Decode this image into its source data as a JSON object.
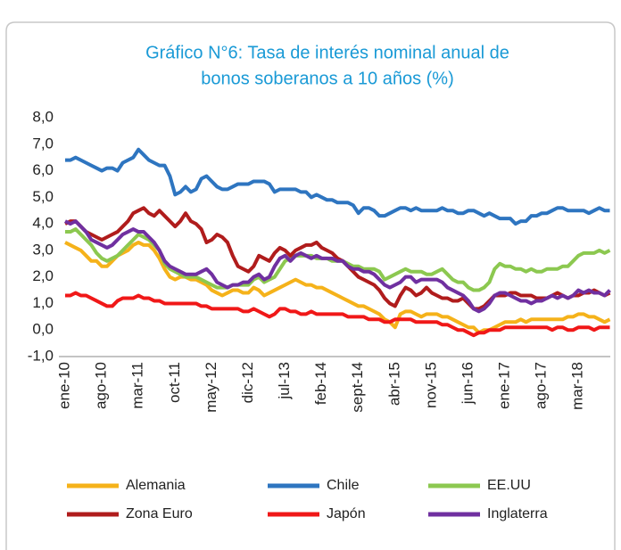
{
  "chart_data": {
    "type": "line",
    "title": [
      "Gráfico N°6: Tasa de interés nominal anual de",
      "bonos soberanos a 10 años (%)"
    ],
    "categories": [
      "ene-10",
      null,
      null,
      null,
      null,
      null,
      null,
      "ago-10",
      null,
      null,
      null,
      null,
      null,
      null,
      "mar-11",
      null,
      null,
      null,
      null,
      null,
      null,
      "oct-11",
      null,
      null,
      null,
      null,
      null,
      null,
      "may-12",
      null,
      null,
      null,
      null,
      null,
      null,
      "dic-12",
      null,
      null,
      null,
      null,
      null,
      null,
      "jul-13",
      null,
      null,
      null,
      null,
      null,
      null,
      "feb-14",
      null,
      null,
      null,
      null,
      null,
      null,
      "sept-14",
      null,
      null,
      null,
      null,
      null,
      null,
      "abr-15",
      null,
      null,
      null,
      null,
      null,
      null,
      "nov-15",
      null,
      null,
      null,
      null,
      null,
      null,
      "jun-16",
      null,
      null,
      null,
      null,
      null,
      null,
      "ene-17",
      null,
      null,
      null,
      null,
      null,
      null,
      "ago-17",
      null,
      null,
      null,
      null,
      null,
      null,
      "mar-18",
      null,
      null,
      null,
      null,
      null,
      null
    ],
    "ylim": [
      -1,
      8
    ],
    "yticks": [
      {
        "value": -1,
        "label": "-1,0"
      },
      {
        "value": 0,
        "label": "0,0"
      },
      {
        "value": 1,
        "label": "1,0"
      },
      {
        "value": 2,
        "label": "2,0"
      },
      {
        "value": 3,
        "label": "3,0"
      },
      {
        "value": 4,
        "label": "4,0"
      },
      {
        "value": 5,
        "label": "5,0"
      },
      {
        "value": 6,
        "label": "6,0"
      },
      {
        "value": 7,
        "label": "7,0"
      },
      {
        "value": 8,
        "label": "8,0"
      }
    ],
    "grid": false,
    "legend": "bottom",
    "series": [
      {
        "name": "Alemania",
        "color": "#f5b21a",
        "values": [
          3.3,
          3.2,
          3.1,
          3.0,
          2.8,
          2.6,
          2.6,
          2.4,
          2.4,
          2.6,
          2.8,
          2.9,
          3.0,
          3.2,
          3.3,
          3.2,
          3.2,
          3.0,
          2.7,
          2.3,
          2.0,
          1.9,
          2.0,
          2.0,
          1.9,
          1.9,
          1.8,
          1.7,
          1.5,
          1.4,
          1.3,
          1.4,
          1.5,
          1.5,
          1.4,
          1.4,
          1.6,
          1.5,
          1.3,
          1.4,
          1.5,
          1.6,
          1.7,
          1.8,
          1.9,
          1.8,
          1.7,
          1.7,
          1.6,
          1.6,
          1.5,
          1.4,
          1.3,
          1.2,
          1.1,
          1.0,
          0.9,
          0.9,
          0.8,
          0.7,
          0.6,
          0.4,
          0.3,
          0.1,
          0.6,
          0.7,
          0.7,
          0.6,
          0.5,
          0.6,
          0.6,
          0.6,
          0.5,
          0.5,
          0.4,
          0.3,
          0.2,
          0.1,
          0.1,
          -0.1,
          0.0,
          0.0,
          0.1,
          0.2,
          0.3,
          0.3,
          0.3,
          0.4,
          0.3,
          0.4,
          0.4,
          0.4,
          0.4,
          0.4,
          0.4,
          0.4,
          0.5,
          0.5,
          0.6,
          0.6,
          0.5,
          0.5,
          0.4,
          0.3,
          0.4
        ]
      },
      {
        "name": "Chile",
        "color": "#2e75c0",
        "values": [
          6.4,
          6.4,
          6.5,
          6.4,
          6.3,
          6.2,
          6.1,
          6.0,
          6.1,
          6.1,
          6.0,
          6.3,
          6.4,
          6.5,
          6.8,
          6.6,
          6.4,
          6.3,
          6.2,
          6.2,
          5.8,
          5.1,
          5.2,
          5.4,
          5.2,
          5.3,
          5.7,
          5.8,
          5.6,
          5.4,
          5.3,
          5.3,
          5.4,
          5.5,
          5.5,
          5.5,
          5.6,
          5.6,
          5.6,
          5.5,
          5.2,
          5.3,
          5.3,
          5.3,
          5.3,
          5.2,
          5.2,
          5.0,
          5.1,
          5.0,
          4.9,
          4.9,
          4.8,
          4.8,
          4.8,
          4.7,
          4.4,
          4.6,
          4.6,
          4.5,
          4.3,
          4.3,
          4.4,
          4.5,
          4.6,
          4.6,
          4.5,
          4.6,
          4.5,
          4.5,
          4.5,
          4.5,
          4.6,
          4.5,
          4.5,
          4.4,
          4.4,
          4.5,
          4.5,
          4.4,
          4.3,
          4.4,
          4.3,
          4.2,
          4.2,
          4.2,
          4.0,
          4.1,
          4.1,
          4.3,
          4.3,
          4.4,
          4.4,
          4.5,
          4.6,
          4.6,
          4.5,
          4.5,
          4.5,
          4.5,
          4.4,
          4.5,
          4.6,
          4.5,
          4.5
        ]
      },
      {
        "name": "EE.UU",
        "color": "#8cc850",
        "values": [
          3.7,
          3.7,
          3.8,
          3.6,
          3.4,
          3.2,
          2.9,
          2.7,
          2.6,
          2.7,
          2.8,
          3.0,
          3.2,
          3.4,
          3.6,
          3.5,
          3.4,
          3.2,
          3.0,
          2.5,
          2.3,
          2.2,
          2.1,
          2.0,
          2.0,
          2.0,
          1.9,
          1.8,
          1.7,
          1.6,
          1.6,
          1.6,
          1.7,
          1.7,
          1.7,
          1.7,
          1.9,
          2.0,
          1.8,
          1.9,
          2.0,
          2.3,
          2.6,
          2.7,
          2.8,
          2.8,
          2.8,
          2.8,
          2.7,
          2.7,
          2.7,
          2.6,
          2.6,
          2.6,
          2.5,
          2.4,
          2.4,
          2.3,
          2.3,
          2.3,
          2.2,
          1.9,
          2.0,
          2.1,
          2.2,
          2.3,
          2.2,
          2.2,
          2.2,
          2.1,
          2.1,
          2.2,
          2.3,
          2.1,
          1.9,
          1.8,
          1.8,
          1.6,
          1.5,
          1.5,
          1.6,
          1.8,
          2.3,
          2.5,
          2.4,
          2.4,
          2.3,
          2.3,
          2.2,
          2.3,
          2.2,
          2.2,
          2.3,
          2.3,
          2.3,
          2.4,
          2.4,
          2.6,
          2.8,
          2.9,
          2.9,
          2.9,
          3.0,
          2.9,
          3.0
        ]
      },
      {
        "name": "Zona Euro",
        "color": "#b01c1c",
        "values": [
          4.0,
          4.1,
          4.1,
          3.9,
          3.7,
          3.6,
          3.5,
          3.4,
          3.5,
          3.6,
          3.7,
          3.9,
          4.1,
          4.4,
          4.5,
          4.6,
          4.4,
          4.3,
          4.5,
          4.3,
          4.1,
          3.9,
          4.1,
          4.4,
          4.1,
          4.0,
          3.8,
          3.3,
          3.4,
          3.6,
          3.5,
          3.3,
          2.8,
          2.4,
          2.3,
          2.2,
          2.4,
          2.8,
          2.7,
          2.6,
          2.9,
          3.1,
          3.0,
          2.8,
          3.0,
          3.1,
          3.2,
          3.2,
          3.3,
          3.1,
          3.0,
          2.9,
          2.7,
          2.6,
          2.4,
          2.2,
          2.0,
          1.9,
          1.8,
          1.7,
          1.5,
          1.2,
          1.0,
          0.9,
          1.3,
          1.6,
          1.5,
          1.3,
          1.4,
          1.6,
          1.4,
          1.3,
          1.2,
          1.2,
          1.1,
          1.1,
          1.2,
          1.0,
          0.8,
          0.8,
          0.9,
          1.1,
          1.3,
          1.3,
          1.3,
          1.4,
          1.4,
          1.3,
          1.3,
          1.3,
          1.2,
          1.2,
          1.2,
          1.3,
          1.4,
          1.3,
          1.2,
          1.3,
          1.3,
          1.4,
          1.4,
          1.5,
          1.4,
          1.3,
          1.4
        ]
      },
      {
        "name": "Japón",
        "color": "#f01818",
        "values": [
          1.3,
          1.3,
          1.4,
          1.3,
          1.3,
          1.2,
          1.1,
          1.0,
          0.9,
          0.9,
          1.1,
          1.2,
          1.2,
          1.2,
          1.3,
          1.2,
          1.2,
          1.1,
          1.1,
          1.0,
          1.0,
          1.0,
          1.0,
          1.0,
          1.0,
          1.0,
          0.9,
          0.9,
          0.8,
          0.8,
          0.8,
          0.8,
          0.8,
          0.8,
          0.7,
          0.7,
          0.8,
          0.7,
          0.6,
          0.5,
          0.6,
          0.8,
          0.8,
          0.7,
          0.7,
          0.6,
          0.6,
          0.7,
          0.6,
          0.6,
          0.6,
          0.6,
          0.6,
          0.6,
          0.5,
          0.5,
          0.5,
          0.5,
          0.4,
          0.4,
          0.4,
          0.3,
          0.3,
          0.4,
          0.4,
          0.4,
          0.4,
          0.3,
          0.3,
          0.3,
          0.3,
          0.3,
          0.2,
          0.2,
          0.1,
          0.0,
          0.0,
          -0.1,
          -0.2,
          -0.1,
          -0.1,
          0.0,
          0.0,
          0.0,
          0.1,
          0.1,
          0.1,
          0.1,
          0.1,
          0.1,
          0.1,
          0.1,
          0.1,
          0.0,
          0.1,
          0.1,
          0.0,
          0.0,
          0.1,
          0.1,
          0.1,
          0.0,
          0.1,
          0.1,
          0.1
        ]
      },
      {
        "name": "Inglaterra",
        "color": "#7030a0",
        "values": [
          4.1,
          4.0,
          4.1,
          3.9,
          3.7,
          3.4,
          3.3,
          3.2,
          3.1,
          3.2,
          3.4,
          3.6,
          3.7,
          3.8,
          3.7,
          3.7,
          3.5,
          3.3,
          3.0,
          2.6,
          2.4,
          2.3,
          2.2,
          2.1,
          2.1,
          2.1,
          2.2,
          2.3,
          2.1,
          1.8,
          1.7,
          1.6,
          1.7,
          1.7,
          1.8,
          1.8,
          2.0,
          2.1,
          1.9,
          2.0,
          2.4,
          2.7,
          2.8,
          2.6,
          2.8,
          2.9,
          2.8,
          2.7,
          2.8,
          2.7,
          2.7,
          2.7,
          2.6,
          2.6,
          2.4,
          2.3,
          2.3,
          2.2,
          2.2,
          2.1,
          1.9,
          1.7,
          1.6,
          1.7,
          1.8,
          2.0,
          2.0,
          1.8,
          1.9,
          1.9,
          1.9,
          1.9,
          1.8,
          1.6,
          1.5,
          1.4,
          1.3,
          1.1,
          0.8,
          0.7,
          0.8,
          1.0,
          1.3,
          1.4,
          1.4,
          1.3,
          1.2,
          1.1,
          1.1,
          1.0,
          1.1,
          1.1,
          1.2,
          1.3,
          1.2,
          1.3,
          1.2,
          1.3,
          1.5,
          1.4,
          1.5,
          1.4,
          1.4,
          1.3,
          1.5
        ]
      }
    ]
  }
}
